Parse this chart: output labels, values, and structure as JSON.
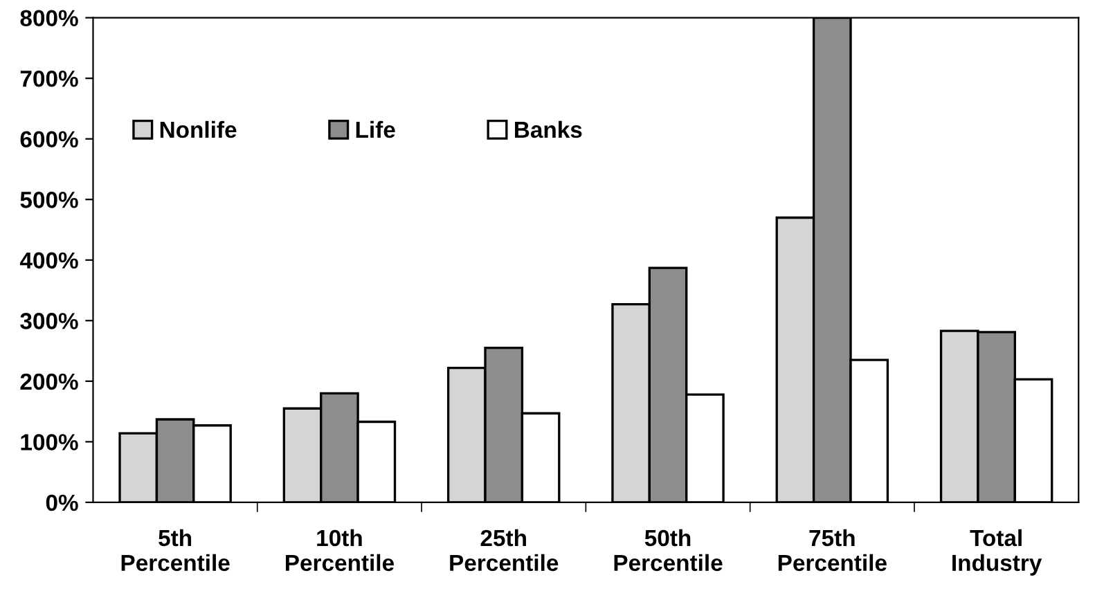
{
  "chart_data": {
    "type": "bar",
    "categories": [
      "5th\nPercentile",
      "10th\nPercentile",
      "25th\nPercentile",
      "50th\nPercentile",
      "75th\nPercentile",
      "Total\nIndustry"
    ],
    "series": [
      {
        "name": "Nonlife",
        "color": "#d4d5d7",
        "values": [
          114,
          155,
          222,
          327,
          470,
          283
        ]
      },
      {
        "name": "Life",
        "color": "#8c8d8f",
        "values": [
          137,
          180,
          255,
          387,
          800,
          281
        ]
      },
      {
        "name": "Banks",
        "color": "#ffffff",
        "values": [
          127,
          133,
          147,
          178,
          235,
          203
        ]
      }
    ],
    "ylim": [
      0,
      800
    ],
    "yticks": [
      {
        "value": 0,
        "label": "0%"
      },
      {
        "value": 100,
        "label": "100%"
      },
      {
        "value": 200,
        "label": "200%"
      },
      {
        "value": 300,
        "label": "300%"
      },
      {
        "value": 400,
        "label": "400%"
      },
      {
        "value": 500,
        "label": "500%"
      },
      {
        "value": 600,
        "label": "600%"
      },
      {
        "value": 700,
        "label": "700%"
      },
      {
        "value": 800,
        "label": "800%"
      }
    ],
    "grid": false,
    "legend": "top left"
  }
}
